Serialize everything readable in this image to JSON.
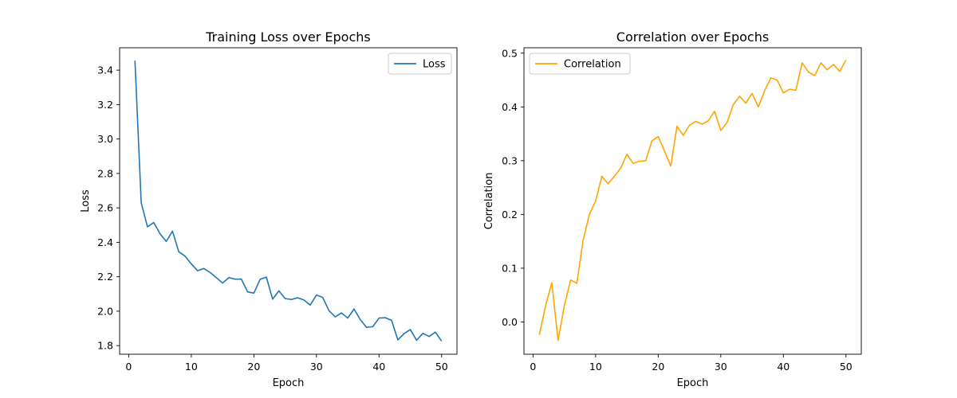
{
  "chart_data": [
    {
      "type": "line",
      "title": "Training Loss over Epochs",
      "xlabel": "Epoch",
      "ylabel": "Loss",
      "xlim": [
        -1.45,
        52.45
      ],
      "ylim": [
        1.75,
        3.53
      ],
      "xticks": [
        0,
        10,
        20,
        30,
        40,
        50
      ],
      "yticks": [
        1.8,
        2.0,
        2.2,
        2.4,
        2.6,
        2.8,
        3.0,
        3.2,
        3.4
      ],
      "ytick_labels": [
        "1.8",
        "2.0",
        "2.2",
        "2.4",
        "2.6",
        "2.8",
        "3.0",
        "3.2",
        "3.4"
      ],
      "grid": false,
      "legend_position": "top-right",
      "series": [
        {
          "name": "Loss",
          "color": "#1f77b4",
          "x": [
            1,
            2,
            3,
            4,
            5,
            6,
            7,
            8,
            9,
            10,
            11,
            12,
            13,
            14,
            15,
            16,
            17,
            18,
            19,
            20,
            21,
            22,
            23,
            24,
            25,
            26,
            27,
            28,
            29,
            30,
            31,
            32,
            33,
            34,
            35,
            36,
            37,
            38,
            39,
            40,
            41,
            42,
            43,
            44,
            45,
            46,
            47,
            48,
            49,
            50
          ],
          "values": [
            3.455,
            2.63,
            2.49,
            2.515,
            2.45,
            2.405,
            2.465,
            2.345,
            2.32,
            2.275,
            2.235,
            2.248,
            2.225,
            2.195,
            2.163,
            2.195,
            2.186,
            2.186,
            2.112,
            2.105,
            2.185,
            2.198,
            2.07,
            2.118,
            2.073,
            2.068,
            2.078,
            2.065,
            2.035,
            2.094,
            2.08,
            2.003,
            1.967,
            1.99,
            1.96,
            2.013,
            1.951,
            1.906,
            1.91,
            1.96,
            1.962,
            1.947,
            1.833,
            1.87,
            1.893,
            1.831,
            1.871,
            1.853,
            1.878,
            1.826
          ]
        }
      ]
    },
    {
      "type": "line",
      "title": "Correlation over Epochs",
      "xlabel": "Epoch",
      "ylabel": "Correlation",
      "xlim": [
        -1.45,
        52.45
      ],
      "ylim": [
        -0.06,
        0.51
      ],
      "xticks": [
        0,
        10,
        20,
        30,
        40,
        50
      ],
      "yticks": [
        0.0,
        0.1,
        0.2,
        0.3,
        0.4,
        0.5
      ],
      "ytick_labels": [
        "0.0",
        "0.1",
        "0.2",
        "0.3",
        "0.4",
        "0.5"
      ],
      "grid": false,
      "legend_position": "top-left",
      "series": [
        {
          "name": "Correlation",
          "color": "#ffa500",
          "x": [
            1,
            2,
            3,
            4,
            5,
            6,
            7,
            8,
            9,
            10,
            11,
            12,
            13,
            14,
            15,
            16,
            17,
            18,
            19,
            20,
            21,
            22,
            23,
            24,
            25,
            26,
            27,
            28,
            29,
            30,
            31,
            32,
            33,
            34,
            35,
            36,
            37,
            38,
            39,
            40,
            41,
            42,
            43,
            44,
            45,
            46,
            47,
            48,
            49,
            50
          ],
          "values": [
            -0.024,
            0.03,
            0.073,
            -0.034,
            0.03,
            0.078,
            0.072,
            0.152,
            0.2,
            0.225,
            0.271,
            0.257,
            0.271,
            0.286,
            0.312,
            0.295,
            0.299,
            0.3,
            0.337,
            0.345,
            0.318,
            0.29,
            0.364,
            0.347,
            0.366,
            0.373,
            0.368,
            0.374,
            0.392,
            0.356,
            0.371,
            0.404,
            0.42,
            0.407,
            0.425,
            0.4,
            0.43,
            0.454,
            0.45,
            0.426,
            0.433,
            0.431,
            0.482,
            0.465,
            0.458,
            0.482,
            0.469,
            0.479,
            0.466,
            0.487
          ]
        }
      ]
    }
  ]
}
